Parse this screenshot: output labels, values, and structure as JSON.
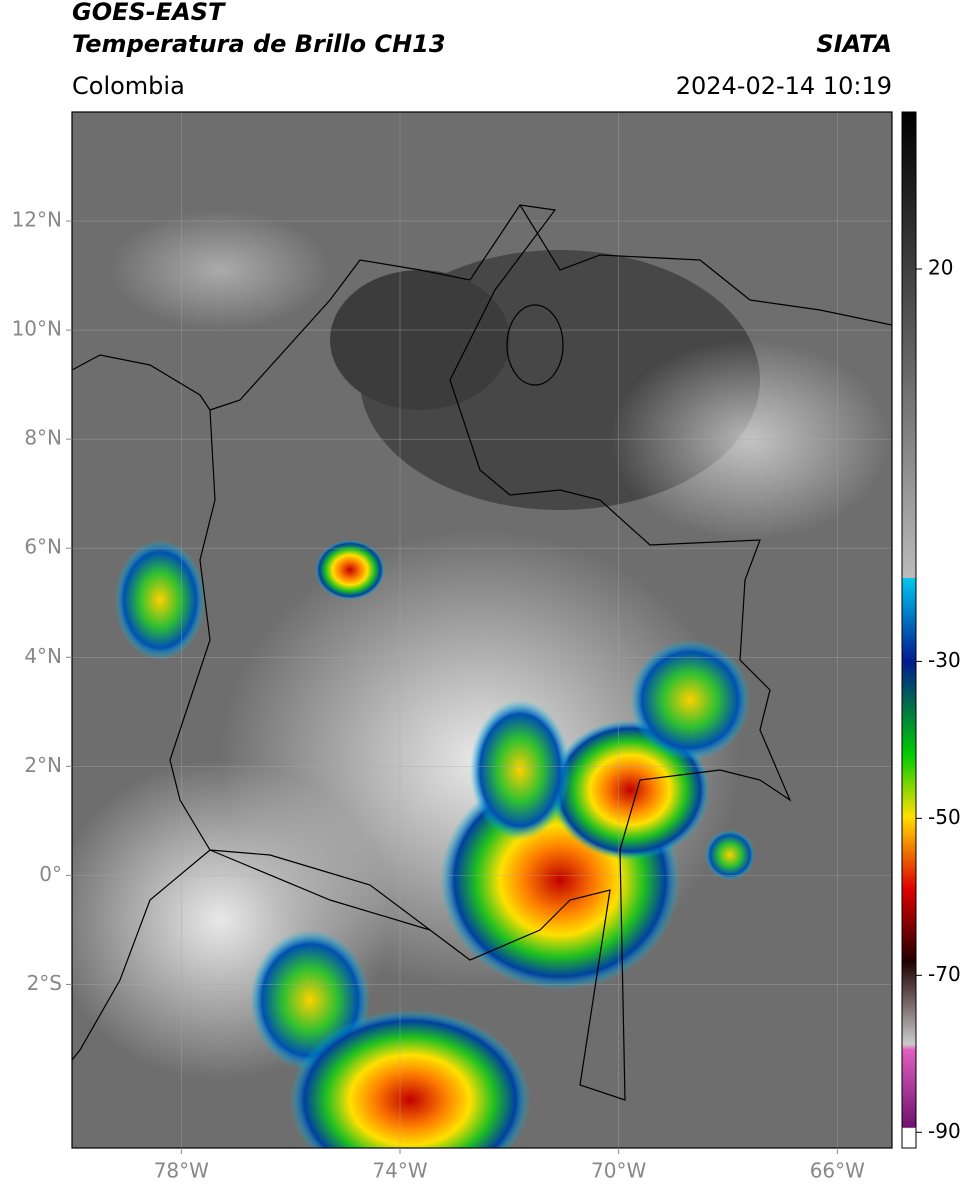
{
  "header": {
    "title": "GOES-EAST",
    "subtitle": "Temperatura de Brillo CH13",
    "source": "SIATA",
    "region": "Colombia",
    "datetime": "2024-02-14 10:19"
  },
  "map": {
    "xlim": [
      -80,
      -65
    ],
    "ylim": [
      -5,
      14
    ],
    "xticks": [
      {
        "value": -78,
        "label": "78°W"
      },
      {
        "value": -74,
        "label": "74°W"
      },
      {
        "value": -70,
        "label": "70°W"
      },
      {
        "value": -66,
        "label": "66°W"
      }
    ],
    "yticks": [
      {
        "value": 12,
        "label": "12°N"
      },
      {
        "value": 10,
        "label": "10°N"
      },
      {
        "value": 8,
        "label": "8°N"
      },
      {
        "value": 6,
        "label": "6°N"
      },
      {
        "value": 4,
        "label": "4°N"
      },
      {
        "value": 2,
        "label": "2°N"
      },
      {
        "value": 0,
        "label": "0°"
      },
      {
        "value": -2,
        "label": "2°S"
      }
    ]
  },
  "colorbar": {
    "lim": [
      -92,
      40
    ],
    "ticks": [
      20,
      -30,
      -50,
      -70,
      -90
    ]
  }
}
